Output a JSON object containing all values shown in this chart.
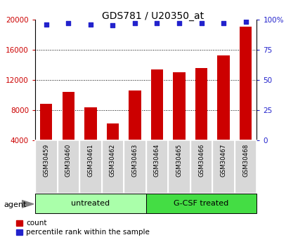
{
  "title": "GDS781 / U20350_at",
  "samples": [
    "GSM30459",
    "GSM30460",
    "GSM30461",
    "GSM30462",
    "GSM30463",
    "GSM30464",
    "GSM30465",
    "GSM30466",
    "GSM30467",
    "GSM30468"
  ],
  "counts": [
    8800,
    10400,
    8400,
    6200,
    10600,
    13400,
    13000,
    13600,
    15200,
    19000
  ],
  "percentile_ranks": [
    96,
    97,
    96,
    95,
    97,
    97,
    97,
    97,
    97,
    98
  ],
  "bar_color": "#cc0000",
  "dot_color": "#2222cc",
  "ylim_left": [
    4000,
    20000
  ],
  "ylim_right": [
    0,
    100
  ],
  "yticks_left": [
    4000,
    8000,
    12000,
    16000,
    20000
  ],
  "yticks_right": [
    0,
    25,
    50,
    75,
    100
  ],
  "yticklabels_right": [
    "0",
    "25",
    "50",
    "75",
    "100%"
  ],
  "groups": [
    {
      "label": "untreated",
      "indices": [
        0,
        1,
        2,
        3,
        4
      ],
      "color": "#aaffaa"
    },
    {
      "label": "G-CSF treated",
      "indices": [
        5,
        6,
        7,
        8,
        9
      ],
      "color": "#44dd44"
    }
  ],
  "group_label": "agent",
  "legend_count_label": "count",
  "legend_percentile_label": "percentile rank within the sample",
  "background_color": "#ffffff",
  "tick_label_color_left": "#cc0000",
  "tick_label_color_right": "#2222cc",
  "sample_box_color": "#d8d8d8",
  "sample_box_edge_color": "#ffffff"
}
